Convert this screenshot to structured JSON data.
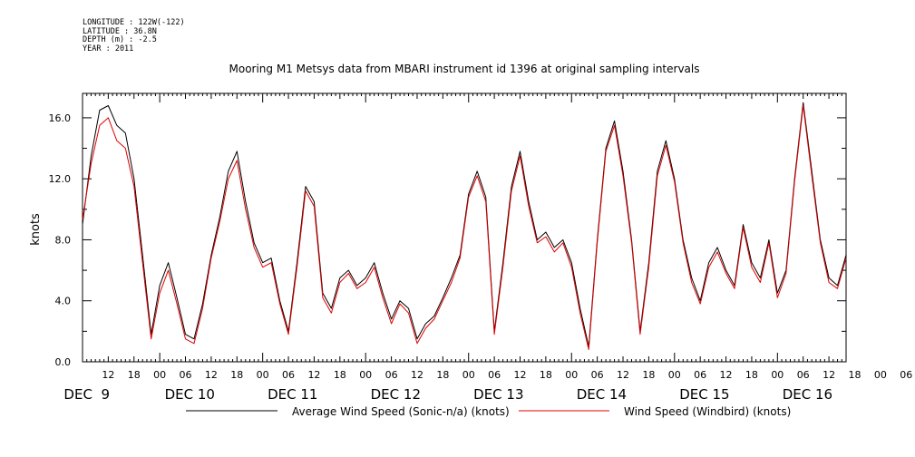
{
  "meta": {
    "longitude": "LONGITUDE : 122W(-122)",
    "latitude": "LATITUDE : 36.8N",
    "depth": "DEPTH (m) : -2.5",
    "year": "YEAR : 2011"
  },
  "chart_data": {
    "type": "line",
    "title": "Mooring M1 Metsys data from MBARI instrument id 1396 at original sampling intervals",
    "xlabel": "",
    "ylabel": "knots",
    "xlim": [
      6.0,
      184.0
    ],
    "ylim": [
      0.0,
      17.6
    ],
    "yticks": [
      "0.0",
      "4.0",
      "8.0",
      "12.0",
      "16.0"
    ],
    "x_hour_labels": [
      "12",
      "18",
      "00",
      "06",
      "12",
      "18",
      "00",
      "06",
      "12",
      "18",
      "00",
      "06",
      "12",
      "18",
      "00",
      "06",
      "12",
      "18",
      "00",
      "06",
      "12",
      "18",
      "00",
      "06",
      "12",
      "18",
      "00",
      "06",
      "12",
      "18",
      "00",
      "06"
    ],
    "x_day_labels": [
      "DEC  9",
      "DEC 10",
      "DEC 11",
      "DEC 12",
      "DEC 13",
      "DEC 14",
      "DEC 15",
      "DEC 16"
    ],
    "grid": false,
    "x_units": "hours since DEC 9 00:00",
    "x": [
      6,
      8,
      10,
      12,
      14,
      16,
      18,
      20,
      22,
      24,
      26,
      28,
      30,
      32,
      34,
      36,
      38,
      40,
      42,
      44,
      46,
      48,
      50,
      52,
      54,
      56,
      58,
      60,
      62,
      64,
      66,
      68,
      70,
      72,
      74,
      76,
      78,
      80,
      82,
      84,
      86,
      88,
      90,
      92,
      94,
      96,
      98,
      100,
      102,
      104,
      106,
      108,
      110,
      112,
      114,
      116,
      118,
      120,
      122,
      124,
      126,
      128,
      130,
      132,
      134,
      136,
      138,
      140,
      142,
      144,
      146,
      148,
      150,
      152,
      154,
      156,
      158,
      160,
      162,
      164,
      166,
      168,
      170,
      172,
      174,
      176,
      178,
      180,
      182,
      184
    ],
    "series": [
      {
        "name": "Average Wind Speed (Sonic-n/a) (knots)",
        "color": "#000000",
        "values": [
          9.0,
          13.5,
          16.5,
          16.8,
          15.5,
          15.0,
          12.0,
          7.0,
          1.8,
          5.0,
          6.5,
          4.2,
          1.8,
          1.5,
          3.8,
          7.0,
          9.5,
          12.5,
          13.8,
          10.5,
          7.8,
          6.5,
          6.8,
          4.0,
          2.0,
          6.5,
          11.5,
          10.5,
          4.5,
          3.5,
          5.5,
          6.0,
          5.0,
          5.5,
          6.5,
          4.5,
          2.8,
          4.0,
          3.5,
          1.5,
          2.5,
          3.0,
          4.2,
          5.5,
          7.0,
          11.0,
          12.5,
          10.8,
          2.0,
          6.5,
          11.5,
          13.8,
          10.5,
          8.0,
          8.5,
          7.5,
          8.0,
          6.5,
          3.5,
          1.0,
          8.0,
          14.0,
          15.8,
          12.5,
          8.0,
          2.0,
          6.5,
          12.5,
          14.5,
          12.0,
          8.0,
          5.5,
          4.0,
          6.5,
          7.5,
          6.0,
          5.0,
          9.0,
          6.5,
          5.5,
          8.0,
          4.5,
          6.0,
          12.0,
          17.0,
          12.5,
          8.0,
          5.5,
          5.0,
          7.0
        ]
      },
      {
        "name": "Wind Speed (Windbird) (knots)",
        "color": "#e00000",
        "values": [
          9.3,
          13.0,
          15.5,
          16.0,
          14.5,
          14.0,
          11.5,
          6.5,
          1.5,
          4.5,
          6.0,
          3.8,
          1.5,
          1.2,
          3.5,
          6.8,
          9.2,
          12.0,
          13.2,
          10.0,
          7.5,
          6.2,
          6.5,
          3.8,
          1.8,
          6.2,
          11.2,
          10.2,
          4.2,
          3.2,
          5.2,
          5.8,
          4.8,
          5.2,
          6.2,
          4.2,
          2.5,
          3.8,
          3.2,
          1.2,
          2.2,
          2.8,
          4.0,
          5.2,
          6.8,
          10.8,
          12.2,
          10.5,
          1.8,
          6.2,
          11.2,
          13.5,
          10.2,
          7.8,
          8.2,
          7.2,
          7.8,
          6.2,
          3.2,
          0.8,
          7.8,
          13.8,
          15.5,
          12.2,
          7.8,
          1.8,
          6.2,
          12.2,
          14.2,
          11.8,
          7.8,
          5.2,
          3.8,
          6.2,
          7.2,
          5.8,
          4.8,
          8.8,
          6.2,
          5.2,
          7.8,
          4.2,
          5.8,
          11.8,
          16.8,
          12.2,
          7.8,
          5.2,
          4.8,
          6.8
        ]
      }
    ]
  }
}
